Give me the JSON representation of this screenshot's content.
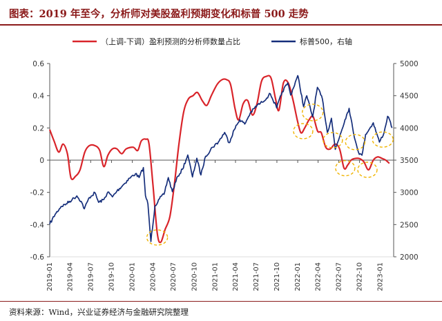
{
  "header": {
    "title": "图表：2019 年至今，分析师对美股盈利预期变化和标普 500 走势"
  },
  "footer": {
    "source": "资料来源：Wind，兴业证券经济与金融研究院整理"
  },
  "chart_data": {
    "type": "line",
    "title": "图表：2019 年至今，分析师对美股盈利预期变化和标普 500 走势",
    "x_tick_labels": [
      "2019-01",
      "2019-04",
      "2019-07",
      "2019-10",
      "2020-01",
      "2020-04",
      "2020-07",
      "2020-10",
      "2021-01",
      "2021-04",
      "2021-07",
      "2021-10",
      "2022-01",
      "2022-04",
      "2022-07",
      "2022-10",
      "2023-01"
    ],
    "y_left": {
      "ticks": [
        "0.6",
        "0.4",
        "0.2",
        "0",
        "-0.2",
        "-0.4",
        "-0.6"
      ],
      "range": [
        -0.6,
        0.6
      ]
    },
    "y_right": {
      "ticks": [
        "5000",
        "4500",
        "4000",
        "3500",
        "3000",
        "2500",
        "2000"
      ],
      "range": [
        2000,
        5000
      ]
    },
    "legend_position": "top",
    "series": [
      {
        "name": "（上调-下调）盈利预测的分析师数量占比",
        "axis": "left",
        "color": "#d9242a",
        "points": [
          [
            "2019-01-01",
            0.19
          ],
          [
            "2019-01-20",
            0.12
          ],
          [
            "2019-02-10",
            0.05
          ],
          [
            "2019-03-01",
            0.1
          ],
          [
            "2019-03-20",
            0.04
          ],
          [
            "2019-04-05",
            -0.11
          ],
          [
            "2019-04-25",
            -0.1
          ],
          [
            "2019-05-15",
            -0.06
          ],
          [
            "2019-06-05",
            0.05
          ],
          [
            "2019-06-25",
            0.09
          ],
          [
            "2019-07-20",
            0.09
          ],
          [
            "2019-08-10",
            0.06
          ],
          [
            "2019-08-28",
            -0.04
          ],
          [
            "2019-09-15",
            0.03
          ],
          [
            "2019-10-05",
            0.07
          ],
          [
            "2019-10-25",
            0.07
          ],
          [
            "2019-11-15",
            0.04
          ],
          [
            "2019-12-05",
            0.07
          ],
          [
            "2020-01-05",
            0.08
          ],
          [
            "2020-01-25",
            0.06
          ],
          [
            "2020-02-10",
            0.12
          ],
          [
            "2020-03-01",
            0.13
          ],
          [
            "2020-03-15",
            0.1
          ],
          [
            "2020-04-01",
            -0.15
          ],
          [
            "2020-04-20",
            -0.45
          ],
          [
            "2020-05-05",
            -0.51
          ],
          [
            "2020-05-25",
            -0.43
          ],
          [
            "2020-06-15",
            -0.35
          ],
          [
            "2020-07-05",
            -0.15
          ],
          [
            "2020-07-25",
            0.1
          ],
          [
            "2020-08-15",
            0.3
          ],
          [
            "2020-09-05",
            0.38
          ],
          [
            "2020-09-25",
            0.4
          ],
          [
            "2020-10-15",
            0.42
          ],
          [
            "2020-11-05",
            0.37
          ],
          [
            "2020-11-25",
            0.34
          ],
          [
            "2020-12-15",
            0.4
          ],
          [
            "2021-01-10",
            0.47
          ],
          [
            "2021-02-01",
            0.5
          ],
          [
            "2021-02-20",
            0.5
          ],
          [
            "2021-03-10",
            0.47
          ],
          [
            "2021-03-30",
            0.32
          ],
          [
            "2021-04-15",
            0.25
          ],
          [
            "2021-05-05",
            0.35
          ],
          [
            "2021-05-25",
            0.37
          ],
          [
            "2021-06-15",
            0.28
          ],
          [
            "2021-07-05",
            0.35
          ],
          [
            "2021-07-25",
            0.49
          ],
          [
            "2021-08-15",
            0.52
          ],
          [
            "2021-09-05",
            0.51
          ],
          [
            "2021-09-25",
            0.38
          ],
          [
            "2021-10-10",
            0.31
          ],
          [
            "2021-10-30",
            0.48
          ],
          [
            "2021-11-20",
            0.48
          ],
          [
            "2021-12-10",
            0.38
          ],
          [
            "2021-12-30",
            0.25
          ],
          [
            "2022-01-15",
            0.17
          ],
          [
            "2022-02-01",
            0.2
          ],
          [
            "2022-02-20",
            0.25
          ],
          [
            "2022-03-10",
            0.27
          ],
          [
            "2022-03-30",
            0.18
          ],
          [
            "2022-04-15",
            0.17
          ],
          [
            "2022-05-05",
            0.08
          ],
          [
            "2022-05-25",
            0.07
          ],
          [
            "2022-06-15",
            0.1
          ],
          [
            "2022-07-05",
            0.07
          ],
          [
            "2022-07-25",
            -0.05
          ],
          [
            "2022-08-10",
            -0.03
          ],
          [
            "2022-08-25",
            0.0
          ],
          [
            "2022-09-10",
            0.01
          ],
          [
            "2022-09-30",
            0.01
          ],
          [
            "2022-10-20",
            -0.01
          ],
          [
            "2022-11-10",
            -0.06
          ],
          [
            "2022-12-01",
            0.0
          ],
          [
            "2022-12-20",
            0.02
          ],
          [
            "2023-01-10",
            0.01
          ],
          [
            "2023-01-25",
            0.0
          ],
          [
            "2023-02-10",
            -0.02
          ]
        ]
      },
      {
        "name": "标普500，右轴",
        "axis": "right",
        "color": "#142d7a",
        "points": [
          [
            "2019-01-01",
            2507
          ],
          [
            "2019-01-25",
            2660
          ],
          [
            "2019-02-20",
            2780
          ],
          [
            "2019-03-15",
            2822
          ],
          [
            "2019-04-10",
            2888
          ],
          [
            "2019-05-01",
            2945
          ],
          [
            "2019-05-20",
            2860
          ],
          [
            "2019-06-03",
            2745
          ],
          [
            "2019-06-25",
            2920
          ],
          [
            "2019-07-20",
            2995
          ],
          [
            "2019-08-05",
            2845
          ],
          [
            "2019-08-28",
            2887
          ],
          [
            "2019-09-15",
            3005
          ],
          [
            "2019-10-05",
            2930
          ],
          [
            "2019-10-25",
            3020
          ],
          [
            "2019-11-20",
            3110
          ],
          [
            "2019-12-20",
            3220
          ],
          [
            "2020-01-15",
            3290
          ],
          [
            "2020-01-31",
            3230
          ],
          [
            "2020-02-19",
            3385
          ],
          [
            "2020-02-28",
            2950
          ],
          [
            "2020-03-10",
            2820
          ],
          [
            "2020-03-23",
            2237
          ],
          [
            "2020-04-10",
            2790
          ],
          [
            "2020-04-30",
            2900
          ],
          [
            "2020-05-20",
            2970
          ],
          [
            "2020-06-08",
            3230
          ],
          [
            "2020-06-26",
            3010
          ],
          [
            "2020-07-20",
            3250
          ],
          [
            "2020-08-10",
            3360
          ],
          [
            "2020-09-02",
            3580
          ],
          [
            "2020-09-23",
            3240
          ],
          [
            "2020-10-12",
            3530
          ],
          [
            "2020-10-30",
            3270
          ],
          [
            "2020-11-20",
            3560
          ],
          [
            "2020-12-20",
            3700
          ],
          [
            "2021-01-15",
            3780
          ],
          [
            "2021-02-12",
            3930
          ],
          [
            "2021-03-04",
            3770
          ],
          [
            "2021-03-26",
            3970
          ],
          [
            "2021-04-20",
            4130
          ],
          [
            "2021-05-12",
            4060
          ],
          [
            "2021-06-05",
            4230
          ],
          [
            "2021-07-05",
            4350
          ],
          [
            "2021-07-28",
            4400
          ],
          [
            "2021-08-25",
            4500
          ],
          [
            "2021-09-02",
            4530
          ],
          [
            "2021-09-30",
            4310
          ],
          [
            "2021-10-25",
            4560
          ],
          [
            "2021-11-18",
            4700
          ],
          [
            "2021-12-01",
            4510
          ],
          [
            "2021-12-30",
            4790
          ],
          [
            "2022-01-03",
            4796
          ],
          [
            "2022-01-27",
            4330
          ],
          [
            "2022-02-10",
            4500
          ],
          [
            "2022-03-08",
            4170
          ],
          [
            "2022-03-29",
            4630
          ],
          [
            "2022-04-20",
            4450
          ],
          [
            "2022-05-12",
            3930
          ],
          [
            "2022-05-30",
            4150
          ],
          [
            "2022-06-16",
            3667
          ],
          [
            "2022-07-08",
            3900
          ],
          [
            "2022-07-29",
            4130
          ],
          [
            "2022-08-16",
            4305
          ],
          [
            "2022-09-05",
            3910
          ],
          [
            "2022-09-30",
            3590
          ],
          [
            "2022-10-12",
            3577
          ],
          [
            "2022-10-28",
            3900
          ],
          [
            "2022-11-15",
            3990
          ],
          [
            "2022-12-01",
            4080
          ],
          [
            "2022-12-28",
            3780
          ],
          [
            "2023-01-18",
            3930
          ],
          [
            "2023-02-02",
            4180
          ],
          [
            "2023-02-15",
            4090
          ],
          [
            "2023-02-22",
            4000
          ]
        ]
      }
    ],
    "annotations": "dashed orange ellipses circle the March 2020 trough and turning points from 2022 to early 2023"
  }
}
